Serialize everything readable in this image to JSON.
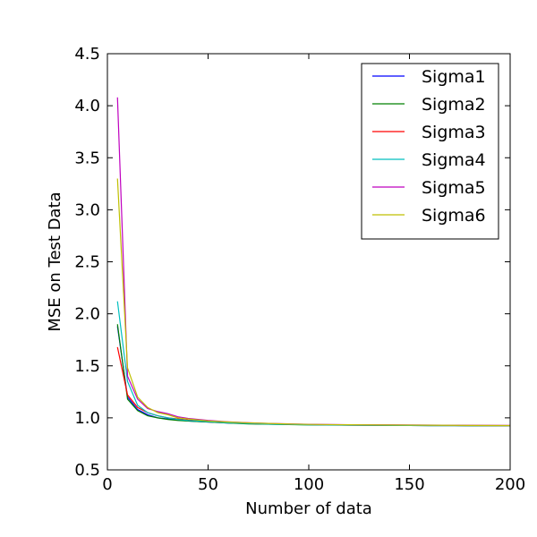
{
  "chart_data": {
    "type": "line",
    "title": "",
    "xlabel": "Number of data",
    "ylabel": "MSE on Test Data",
    "xlim": [
      0,
      200
    ],
    "ylim": [
      0.5,
      4.5
    ],
    "xticks": [
      0,
      50,
      100,
      150,
      200
    ],
    "yticks": [
      0.5,
      1.0,
      1.5,
      2.0,
      2.5,
      3.0,
      3.5,
      4.0,
      4.5
    ],
    "xtick_labels": [
      "0",
      "50",
      "100",
      "150",
      "200"
    ],
    "ytick_labels": [
      "0.5",
      "1.0",
      "1.5",
      "2.0",
      "2.5",
      "3.0",
      "3.5",
      "4.0",
      "4.5"
    ],
    "legend_position": "top-right",
    "grid": false,
    "x": [
      5,
      10,
      15,
      20,
      25,
      30,
      35,
      40,
      50,
      60,
      70,
      80,
      90,
      100,
      120,
      140,
      160,
      180,
      200
    ],
    "series": [
      {
        "name": "Sigma1",
        "color": "#0000ff",
        "values": [
          1.88,
          1.2,
          1.08,
          1.03,
          1.0,
          0.99,
          0.98,
          0.97,
          0.96,
          0.95,
          0.945,
          0.94,
          0.937,
          0.935,
          0.93,
          0.928,
          0.926,
          0.925,
          0.925
        ]
      },
      {
        "name": "Sigma2",
        "color": "#008000",
        "values": [
          1.9,
          1.18,
          1.07,
          1.02,
          1.0,
          0.985,
          0.975,
          0.97,
          0.96,
          0.95,
          0.942,
          0.938,
          0.935,
          0.932,
          0.93,
          0.928,
          0.926,
          0.925,
          0.925
        ]
      },
      {
        "name": "Sigma3",
        "color": "#ff0000",
        "values": [
          1.68,
          1.22,
          1.1,
          1.05,
          1.02,
          1.0,
          0.99,
          0.98,
          0.965,
          0.955,
          0.948,
          0.942,
          0.938,
          0.935,
          0.932,
          0.93,
          0.928,
          0.926,
          0.925
        ]
      },
      {
        "name": "Sigma4",
        "color": "#00bfbf",
        "values": [
          2.12,
          1.35,
          1.12,
          1.05,
          1.02,
          1.0,
          0.985,
          0.975,
          0.963,
          0.953,
          0.946,
          0.94,
          0.936,
          0.933,
          0.93,
          0.928,
          0.926,
          0.925,
          0.925
        ]
      },
      {
        "name": "Sigma5",
        "color": "#bf00bf",
        "values": [
          4.08,
          1.4,
          1.18,
          1.09,
          1.06,
          1.04,
          1.01,
          0.995,
          0.975,
          0.962,
          0.953,
          0.947,
          0.942,
          0.938,
          0.934,
          0.932,
          0.93,
          0.928,
          0.927
        ]
      },
      {
        "name": "Sigma6",
        "color": "#bfbf00",
        "values": [
          3.3,
          1.48,
          1.2,
          1.1,
          1.05,
          1.03,
          1.0,
          0.99,
          0.97,
          0.96,
          0.952,
          0.946,
          0.941,
          0.937,
          0.933,
          0.931,
          0.929,
          0.927,
          0.926
        ]
      }
    ]
  }
}
